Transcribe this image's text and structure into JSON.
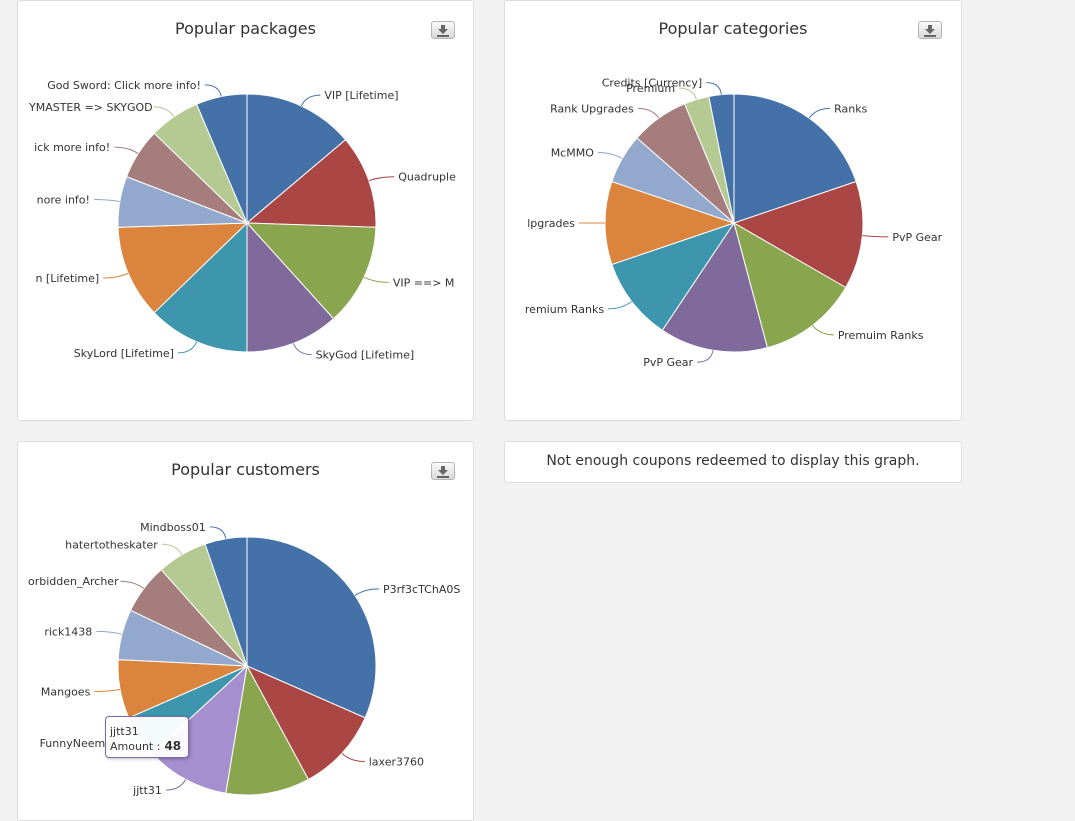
{
  "colors": [
    "#4472a8",
    "#aa4643",
    "#89a54e",
    "#80699b",
    "#3d96ae",
    "#db843d",
    "#92a8cd",
    "#a47d7c",
    "#b5ca92"
  ],
  "packages_panel": {
    "title": "Popular packages",
    "chart_data": {
      "type": "pie",
      "title": "Popular packages",
      "labels": [
        "VIP [Lifetime]",
        "Quadruple",
        "VIP ==> M",
        "SkyGod [Lifetime]",
        "SkyLord [Lifetime]",
        "n [Lifetime]",
        "nore info!",
        "ick more info!",
        "YMASTER => SKYGOD",
        "God Sword: Click more info!"
      ],
      "values": [
        13,
        11,
        12,
        11,
        12,
        11,
        6,
        6,
        6,
        6
      ]
    }
  },
  "categories_panel": {
    "title": "Popular categories",
    "chart_data": {
      "type": "pie",
      "title": "Popular categories",
      "labels": [
        "Ranks",
        "PvP Gear",
        "Premuim Ranks",
        "PvP Gear",
        "remium Ranks",
        "lpgrades",
        "McMMO",
        "Rank Upgrades",
        "Premium",
        "Credits [Currency]"
      ],
      "values": [
        19,
        13,
        12,
        13,
        10,
        10,
        6,
        7,
        3,
        3
      ]
    }
  },
  "customers_panel": {
    "title": "Popular customers",
    "chart_data": {
      "type": "pie",
      "title": "Popular customers",
      "labels": [
        "P3rf3cTChA0S",
        "laxer3760",
        "",
        "jjtt31",
        "FunnyNeems",
        "Mangoes",
        "rick1438",
        "orbidden_Archer",
        "hatertotheskater",
        "Mindboss01"
      ],
      "values": [
        30,
        10,
        10,
        10,
        5,
        7,
        6,
        6,
        6,
        5
      ]
    }
  },
  "coupons_panel": {
    "message": "Not enough coupons redeemed to display this graph."
  },
  "tooltip": {
    "name": "jjtt31",
    "amount_label": "Amount :",
    "amount_value": "48"
  }
}
